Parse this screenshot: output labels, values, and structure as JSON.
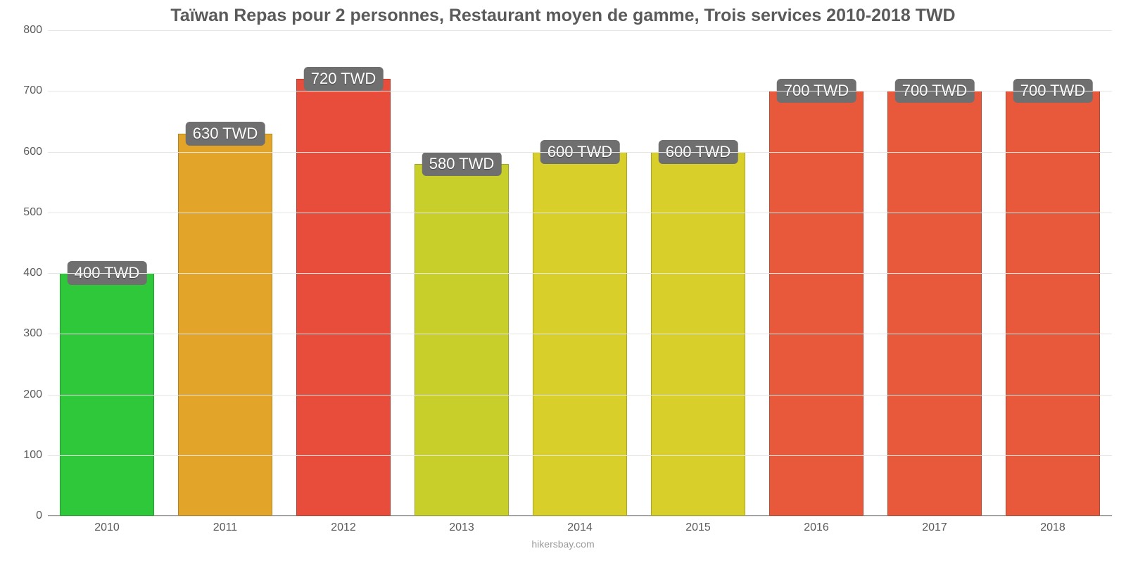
{
  "chart": {
    "type": "bar",
    "title": "Taïwan Repas pour 2 personnes, Restaurant moyen de gamme, Trois services 2010-2018 TWD",
    "title_fontsize": 25,
    "title_color": "#5a5a5a",
    "footer": "hikersbay.com",
    "footer_fontsize": 14,
    "footer_color": "#9a9a9a",
    "background_color": "#ffffff",
    "grid_color": "#e5e5e5",
    "axis_color": "#999999",
    "ylim": [
      0,
      800
    ],
    "ytick_step": 100,
    "yticks": [
      "0",
      "100",
      "200",
      "300",
      "400",
      "500",
      "600",
      "700",
      "800"
    ],
    "ytick_fontsize": 16,
    "xtick_fontsize": 16,
    "categories": [
      "2010",
      "2011",
      "2012",
      "2013",
      "2014",
      "2015",
      "2016",
      "2017",
      "2018"
    ],
    "values": [
      400,
      630,
      720,
      580,
      600,
      600,
      700,
      700,
      700
    ],
    "value_labels": [
      "400 TWD",
      "630 TWD",
      "720 TWD",
      "580 TWD",
      "600 TWD",
      "600 TWD",
      "700 TWD",
      "700 TWD",
      "700 TWD"
    ],
    "bar_colors": [
      "#2fc83a",
      "#e2a52a",
      "#e84c3a",
      "#c8cf2a",
      "#d8cf2a",
      "#d8cf2a",
      "#e8583a",
      "#e8583a",
      "#e8583a"
    ],
    "bar_width": 0.8,
    "value_label_fontsize": 22,
    "value_label_bg": "#6f6f6f",
    "value_label_color": "#ffffff"
  }
}
